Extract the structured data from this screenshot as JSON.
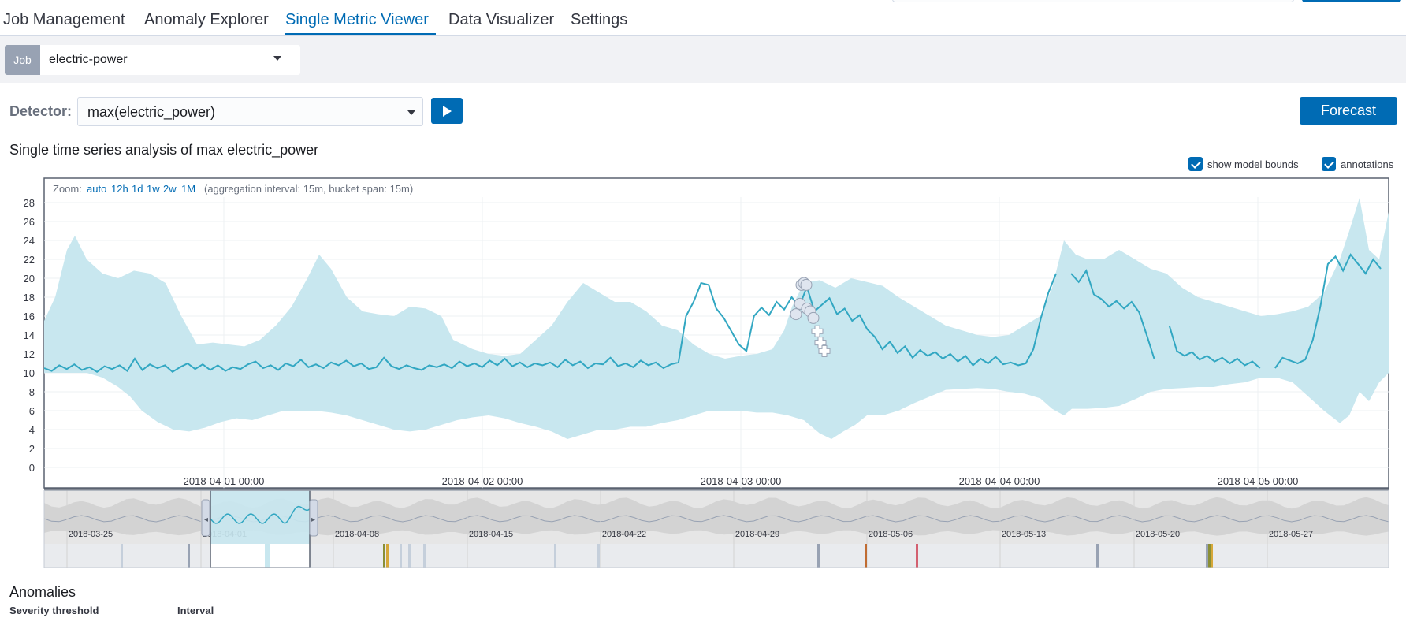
{
  "nav": {
    "tabs": [
      {
        "label": "Job Management",
        "active": false
      },
      {
        "label": "Anomaly Explorer",
        "active": false
      },
      {
        "label": "Single Metric Viewer",
        "active": true
      },
      {
        "label": "Data Visualizer",
        "active": false
      },
      {
        "label": "Settings",
        "active": false
      }
    ]
  },
  "job": {
    "tag": "Job",
    "name": "electric-power"
  },
  "detector": {
    "label": "Detector:",
    "value": "max(electric_power)",
    "play_icon": "play-icon"
  },
  "forecast_label": "Forecast",
  "series_title": "Single time series analysis of max electric_power",
  "options": {
    "model_bounds": {
      "label": "show model bounds",
      "checked": true
    },
    "annotations": {
      "label": "annotations",
      "checked": true
    }
  },
  "zoom": {
    "prefix": "Zoom:",
    "links": [
      "auto",
      "12h",
      "1d",
      "1w",
      "2w",
      "1M"
    ],
    "interval_note": "(aggregation interval: 15m, bucket span: 15m)"
  },
  "colors": {
    "accent": "#006bb4",
    "line": "#32a7c2",
    "bounds": "#c8e7ef",
    "anomaly_marker": "#ffffff"
  },
  "chart_data": {
    "type": "line",
    "ylim": [
      0,
      28
    ],
    "yticks": [
      0,
      2,
      4,
      6,
      8,
      10,
      12,
      14,
      16,
      18,
      20,
      22,
      24,
      26,
      28
    ],
    "xticks": [
      "2018-04-01 00:00",
      "2018-04-02 00:00",
      "2018-04-03 00:00",
      "2018-04-04 00:00",
      "2018-04-05 00:00"
    ],
    "series": [
      {
        "values_hourly_approx": [
          10.5,
          10.2,
          10.8,
          10.4,
          10.9,
          10.3,
          10.6,
          10.1,
          10.7,
          10.4,
          10.8,
          10.2,
          11.5,
          10.3,
          10.9,
          10.5,
          10.8,
          10.1,
          10.6,
          11.0,
          10.4,
          10.9,
          10.3,
          10.8,
          10.2,
          10.6,
          10.4,
          10.9,
          11.2,
          10.5,
          10.8,
          10.3,
          11.0,
          10.7,
          11.4,
          10.6,
          10.9,
          10.5,
          11.1,
          10.8,
          11.3,
          10.7,
          11.0,
          10.4,
          10.6,
          11.6,
          10.7,
          10.4,
          10.8,
          10.5,
          10.3,
          10.8,
          10.6,
          10.9,
          10.5,
          11.2,
          10.7,
          11.0,
          10.6,
          11.3,
          10.8,
          11.5,
          10.7,
          11.1,
          10.6,
          11.0,
          10.8,
          11.1,
          10.6,
          11.4,
          10.8,
          11.2,
          10.5,
          11.0,
          10.9,
          11.6,
          10.7,
          11.0,
          10.6,
          11.3,
          10.8,
          11.1,
          10.5,
          10.9,
          11.1,
          16.0,
          17.5,
          19.5,
          19.3,
          16.8,
          15.8,
          14.4,
          13.0,
          12.3,
          16.0,
          16.9,
          16.1,
          17.5,
          16.7,
          18.0,
          17.0,
          19.1,
          16.5,
          17.2,
          17.9,
          16.2,
          16.8,
          15.5,
          16.1,
          14.6,
          13.8,
          12.5,
          13.3,
          12.1,
          12.8,
          11.6,
          12.4,
          11.8,
          12.2,
          11.5,
          12.0,
          11.2,
          11.8,
          10.8,
          11.5,
          11.0,
          11.7,
          10.9,
          11.1,
          10.8,
          11.0,
          12.5,
          15.8,
          18.5,
          20.5,
          null,
          20.5,
          19.6,
          20.8,
          18.3,
          17.8,
          17.0,
          17.6,
          16.8,
          17.5,
          16.4,
          14.0,
          11.5,
          null,
          15.0,
          12.3,
          11.8,
          12.2,
          11.4,
          11.8,
          11.2,
          11.6,
          11.0,
          11.5,
          10.8,
          11.2,
          10.5,
          null,
          10.5,
          11.6,
          11.3,
          11.0,
          11.4,
          13.5,
          17.0,
          21.5,
          22.3,
          20.8,
          22.5,
          21.5,
          20.5,
          22.0,
          21.0
        ]
      },
      {
        "name": "model bounds"
      }
    ],
    "anomalies": [
      16.2,
      17.3,
      19.3,
      19.5,
      19.3,
      16.8,
      16.5,
      15.8,
      14.4,
      13.2,
      12.3
    ]
  },
  "navigator": {
    "ticks": [
      "2018-03-25",
      "2018-04-01",
      "2018-04-08",
      "2018-04-15",
      "2018-04-22",
      "2018-04-29",
      "2018-05-06",
      "2018-05-13",
      "2018-05-20",
      "2018-05-27"
    ]
  },
  "anomalies_section": {
    "title": "Anomalies",
    "severity_label": "Severity threshold",
    "interval_label": "Interval"
  }
}
